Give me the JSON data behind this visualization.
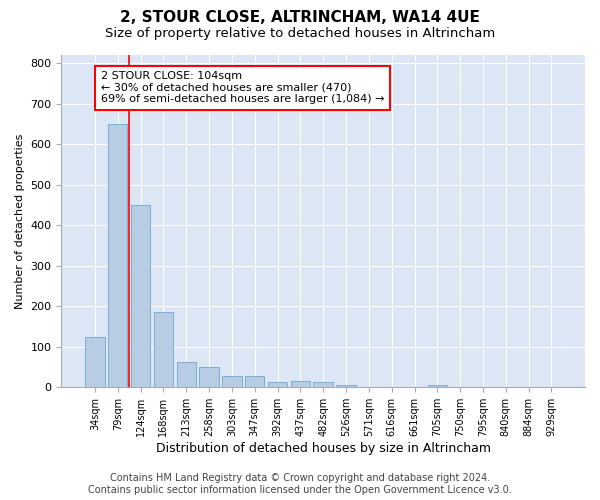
{
  "title": "2, STOUR CLOSE, ALTRINCHAM, WA14 4UE",
  "subtitle": "Size of property relative to detached houses in Altrincham",
  "xlabel": "Distribution of detached houses by size in Altrincham",
  "ylabel": "Number of detached properties",
  "categories": [
    "34sqm",
    "79sqm",
    "124sqm",
    "168sqm",
    "213sqm",
    "258sqm",
    "303sqm",
    "347sqm",
    "392sqm",
    "437sqm",
    "482sqm",
    "526sqm",
    "571sqm",
    "616sqm",
    "661sqm",
    "705sqm",
    "750sqm",
    "795sqm",
    "840sqm",
    "884sqm",
    "929sqm"
  ],
  "values": [
    125,
    650,
    450,
    185,
    62,
    50,
    27,
    27,
    12,
    15,
    12,
    5,
    0,
    0,
    0,
    5,
    0,
    0,
    0,
    0,
    0
  ],
  "bar_color": "#b8cce4",
  "bar_edgecolor": "#6fa8d0",
  "annotation_text": "2 STOUR CLOSE: 104sqm\n← 30% of detached houses are smaller (470)\n69% of semi-detached houses are larger (1,084) →",
  "annotation_box_color": "white",
  "annotation_box_edgecolor": "red",
  "vline_x": 1.5,
  "vline_color": "red",
  "ylim": [
    0,
    820
  ],
  "yticks": [
    0,
    100,
    200,
    300,
    400,
    500,
    600,
    700,
    800
  ],
  "footer_line1": "Contains HM Land Registry data © Crown copyright and database right 2024.",
  "footer_line2": "Contains public sector information licensed under the Open Government Licence v3.0.",
  "plot_bg_color": "#dce6f5",
  "title_fontsize": 11,
  "subtitle_fontsize": 9.5,
  "xlabel_fontsize": 9,
  "ylabel_fontsize": 8,
  "annotation_fontsize": 8,
  "footer_fontsize": 7
}
